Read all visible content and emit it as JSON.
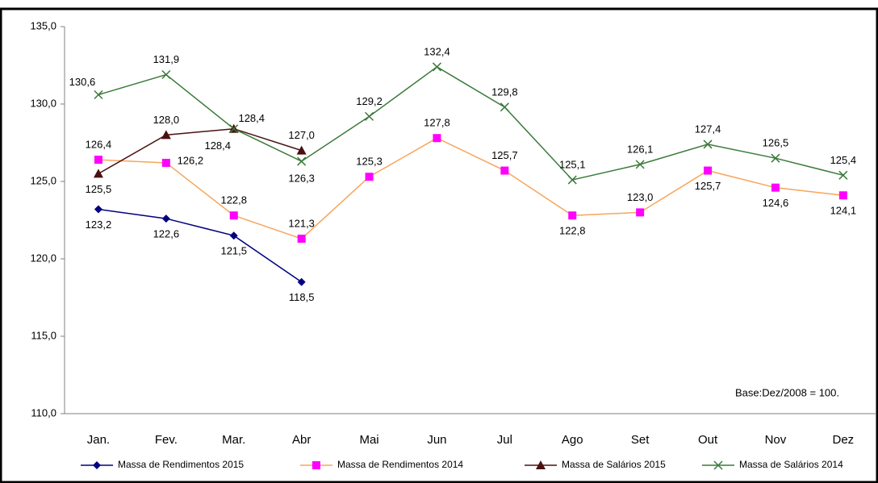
{
  "chart_data": {
    "type": "line",
    "categories": [
      "Jan.",
      "Fev.",
      "Mar.",
      "Abr",
      "Mai",
      "Jun",
      "Jul",
      "Ago",
      "Set",
      "Out",
      "Nov",
      "Dez"
    ],
    "series": [
      {
        "name": "Massa de Rendimentos 2015",
        "color": "#000080",
        "marker": "diamond",
        "values": [
          123.2,
          122.6,
          121.5,
          118.5,
          null,
          null,
          null,
          null,
          null,
          null,
          null,
          null
        ],
        "value_labels": [
          "123,2",
          "122,6",
          "121,5",
          "118,5",
          null,
          null,
          null,
          null,
          null,
          null,
          null,
          null
        ]
      },
      {
        "name": "Massa de Rendimentos 2014",
        "color": "#f7a55a",
        "marker_color": "#ff00ff",
        "marker": "square",
        "values": [
          126.4,
          126.2,
          122.8,
          121.3,
          125.3,
          127.8,
          125.7,
          122.8,
          123.0,
          125.7,
          124.6,
          124.1
        ],
        "value_labels": [
          "126,4",
          "126,2",
          "122,8",
          "121,3",
          "125,3",
          "127,8",
          "125,7",
          "122,8",
          "123,0",
          "125,7",
          "124,6",
          "124,1"
        ]
      },
      {
        "name": "Massa de Salários 2015",
        "color": "#4a1010",
        "marker": "triangle",
        "values": [
          125.5,
          128.0,
          128.4,
          127.0,
          null,
          null,
          null,
          null,
          null,
          null,
          null,
          null
        ],
        "value_labels": [
          "125,5",
          "128,0",
          "128,4",
          "127,0",
          null,
          null,
          null,
          null,
          null,
          null,
          null,
          null
        ]
      },
      {
        "name": "Massa de Salários 2014",
        "color": "#3a7a3a",
        "marker": "x",
        "values": [
          130.6,
          131.9,
          128.4,
          126.3,
          129.2,
          132.4,
          129.8,
          125.1,
          126.1,
          127.4,
          126.5,
          125.4
        ],
        "value_labels": [
          "130,6",
          "131,9",
          "128,4",
          "126,3",
          "129,2",
          "132,4",
          "129,8",
          "125,1",
          "126,1",
          "127,4",
          "126,5",
          "125,4"
        ]
      }
    ],
    "ylim": [
      110,
      135
    ],
    "yticks": [
      {
        "value": 110,
        "label": "110,0"
      },
      {
        "value": 115,
        "label": "115,0"
      },
      {
        "value": 120,
        "label": "120,0"
      },
      {
        "value": 125,
        "label": "125,0"
      },
      {
        "value": 130,
        "label": "130,0"
      },
      {
        "value": 135,
        "label": "135,0"
      }
    ],
    "grid": false,
    "legend": "bottom",
    "annotation": "Base:Dez/2008  = 100."
  }
}
